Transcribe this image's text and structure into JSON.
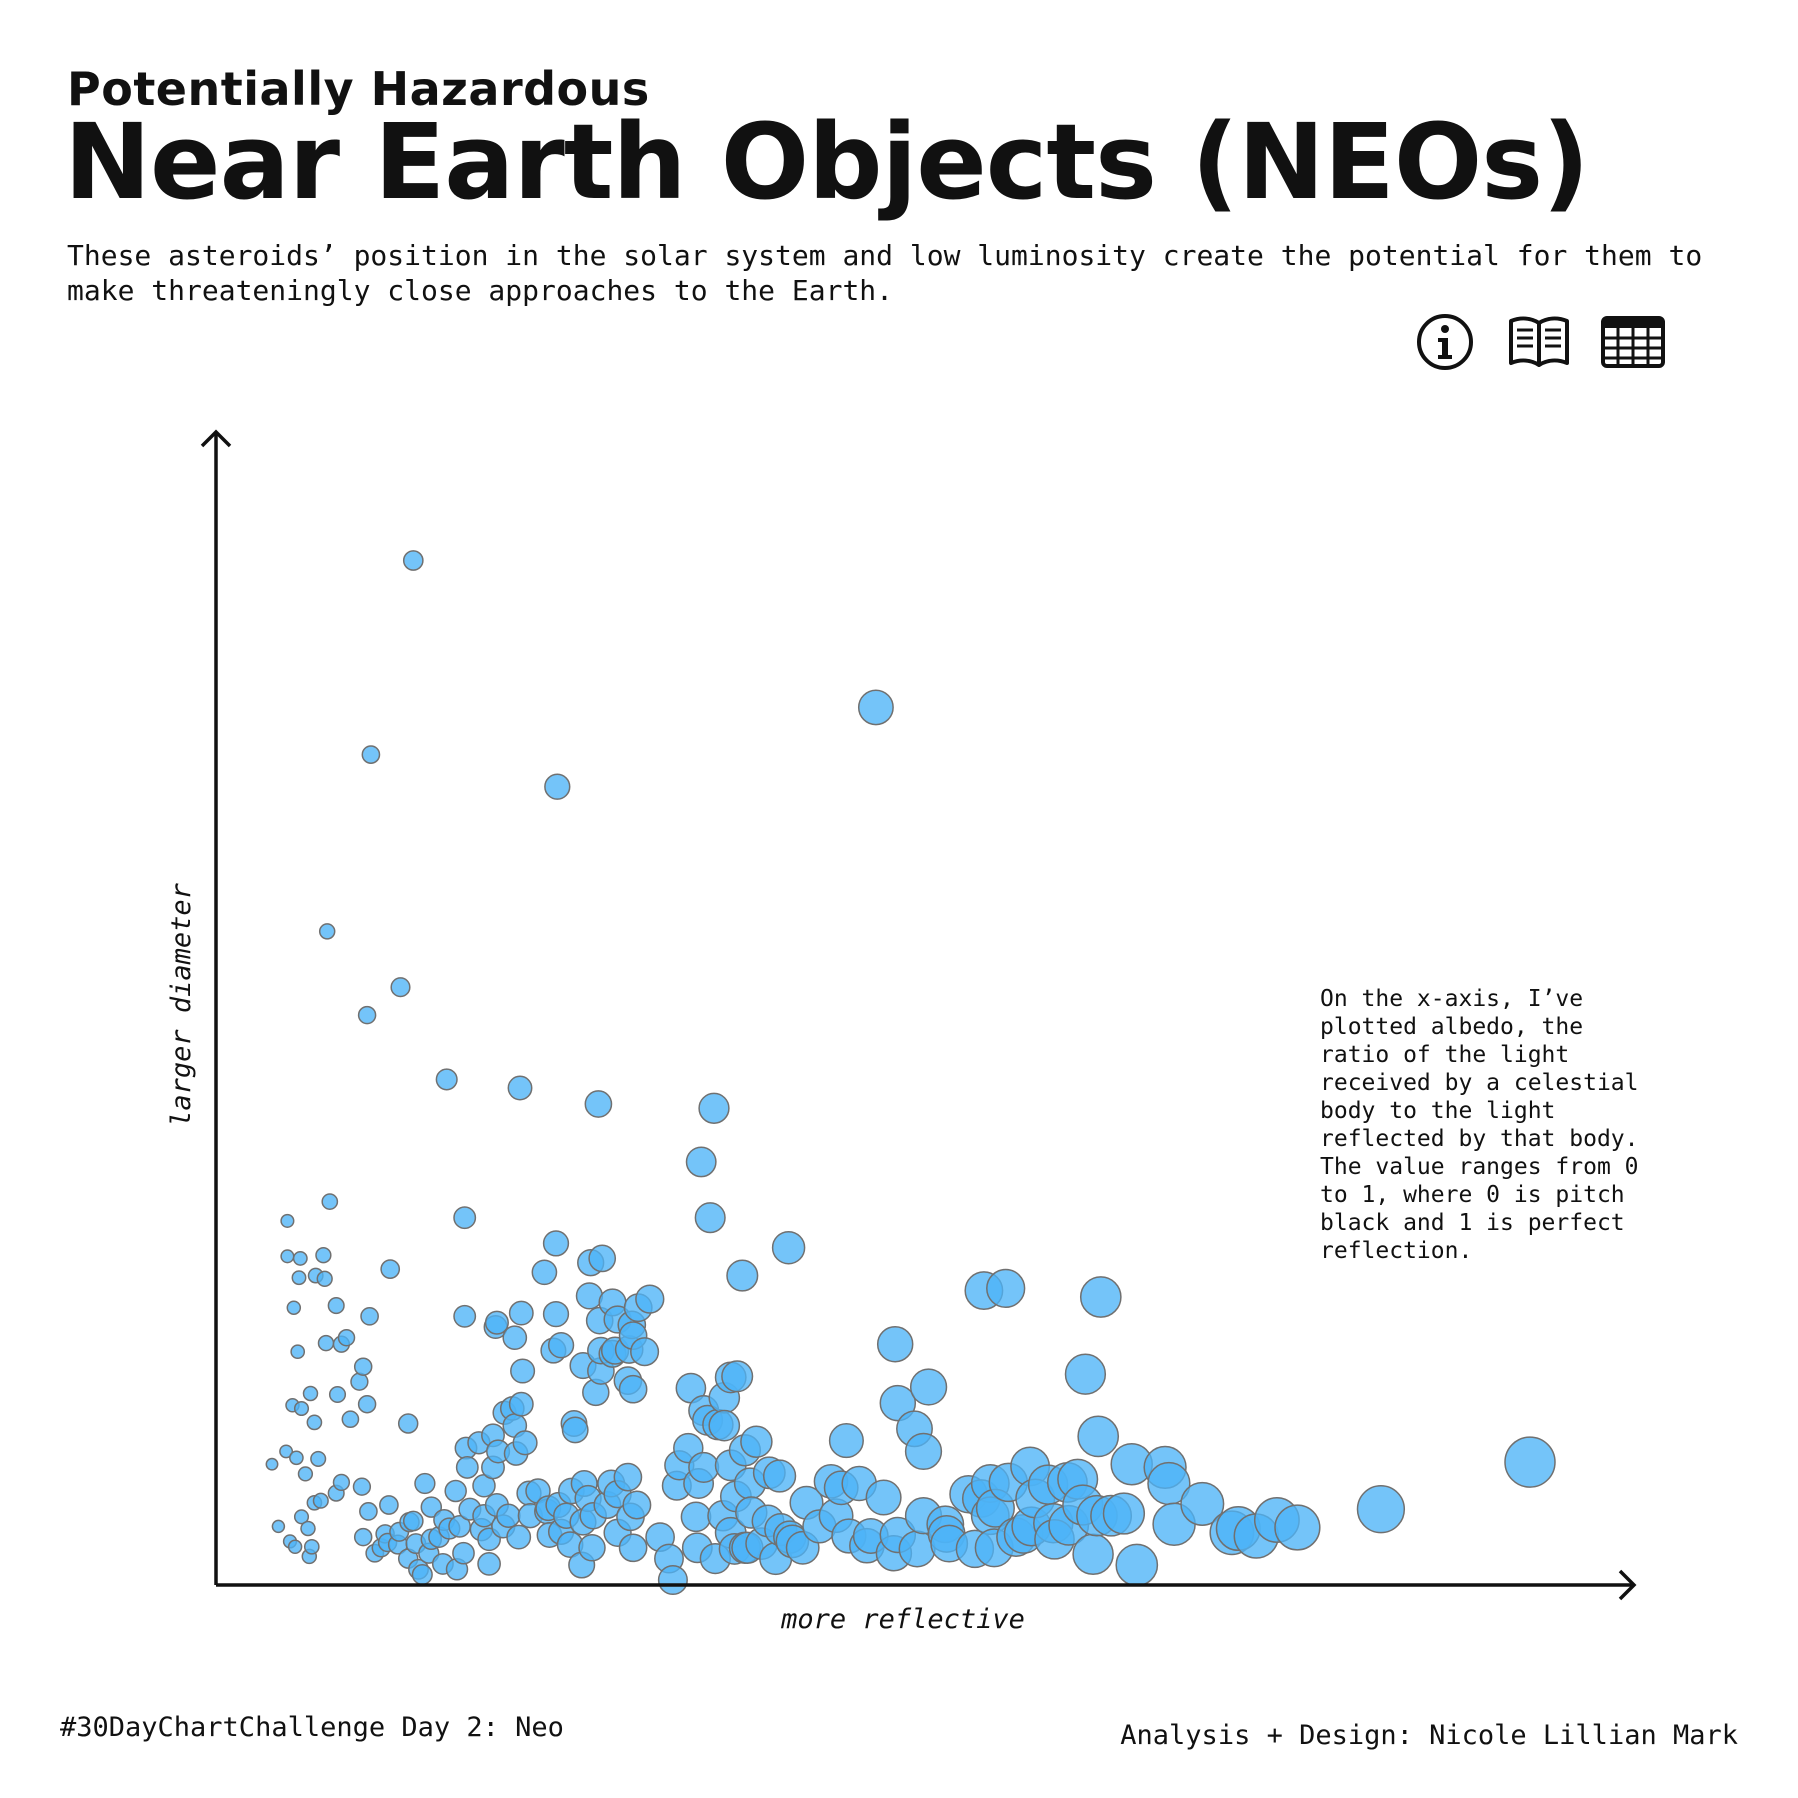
{
  "header": {
    "kicker": "Potentially Hazardous",
    "title": "Near Earth Objects (NEOs)",
    "subtitle": "These asteroids’ position in the solar system and low luminosity create the potential for them to make threateningly close approaches to the Earth."
  },
  "toolbar": {
    "icons": [
      "info-icon",
      "book-icon",
      "table-icon"
    ]
  },
  "annotation": "On the x-axis, I’ve plotted albedo, the ratio of the light received by a celestial body to the light reflected by that body. The value ranges from 0 to 1, where 0 is pitch black and 1 is perfect reflection.",
  "footer": {
    "left": "#30DayChartChallenge Day 2: Neo",
    "right": "Analysis + Design: Nicole Lillian Mark"
  },
  "colors": {
    "point_fill": "#4db3f7",
    "point_stroke": "#707070",
    "ink": "#111111"
  },
  "chart_data": {
    "type": "scatter",
    "xlabel": "more reflective",
    "ylabel": "larger diameter",
    "x_variable": "albedo",
    "xlim": [
      0,
      1
    ],
    "ylim": [
      0,
      1
    ],
    "grid": false,
    "legend": "none",
    "note": "Axes carry no tick labels; values are relative positions (0–1) read from the plot. Bubble size grows with albedo.",
    "points": [
      [
        0.131,
        0.951
      ],
      [
        0.098,
        0.77
      ],
      [
        0.064,
        0.605
      ],
      [
        0.121,
        0.553
      ],
      [
        0.095,
        0.527
      ],
      [
        0.157,
        0.467
      ],
      [
        0.214,
        0.459
      ],
      [
        0.275,
        0.444
      ],
      [
        0.243,
        0.74
      ],
      [
        0.491,
        0.814
      ],
      [
        0.033,
        0.335
      ],
      [
        0.066,
        0.353
      ],
      [
        0.171,
        0.338
      ],
      [
        0.242,
        0.314
      ],
      [
        0.113,
        0.29
      ],
      [
        0.061,
        0.303
      ],
      [
        0.043,
        0.3
      ],
      [
        0.033,
        0.302
      ],
      [
        0.055,
        0.284
      ],
      [
        0.062,
        0.281
      ],
      [
        0.042,
        0.282
      ],
      [
        0.038,
        0.254
      ],
      [
        0.071,
        0.256
      ],
      [
        0.097,
        0.246
      ],
      [
        0.041,
        0.213
      ],
      [
        0.079,
        0.226
      ],
      [
        0.075,
        0.22
      ],
      [
        0.063,
        0.221
      ],
      [
        0.092,
        0.199
      ],
      [
        0.089,
        0.185
      ],
      [
        0.051,
        0.174
      ],
      [
        0.072,
        0.173
      ],
      [
        0.095,
        0.164
      ],
      [
        0.037,
        0.163
      ],
      [
        0.044,
        0.16
      ],
      [
        0.054,
        0.147
      ],
      [
        0.082,
        0.15
      ],
      [
        0.127,
        0.146
      ],
      [
        0.032,
        0.12
      ],
      [
        0.04,
        0.114
      ],
      [
        0.057,
        0.113
      ],
      [
        0.021,
        0.108
      ],
      [
        0.047,
        0.099
      ],
      [
        0.071,
        0.081
      ],
      [
        0.091,
        0.087
      ],
      [
        0.075,
        0.091
      ],
      [
        0.054,
        0.072
      ],
      [
        0.059,
        0.074
      ],
      [
        0.044,
        0.059
      ],
      [
        0.096,
        0.064
      ],
      [
        0.049,
        0.048
      ],
      [
        0.092,
        0.04
      ],
      [
        0.109,
        0.043
      ],
      [
        0.106,
        0.03
      ],
      [
        0.05,
        0.022
      ],
      [
        0.039,
        0.031
      ],
      [
        0.035,
        0.036
      ],
      [
        0.026,
        0.05
      ],
      [
        0.052,
        0.031
      ],
      [
        0.101,
        0.025
      ],
      [
        0.111,
        0.035
      ],
      [
        0.12,
        0.045
      ],
      [
        0.133,
        0.034
      ],
      [
        0.143,
        0.025
      ],
      [
        0.127,
        0.02
      ],
      [
        0.135,
        0.01
      ],
      [
        0.138,
        0.005
      ],
      [
        0.154,
        0.015
      ],
      [
        0.17,
        0.025
      ],
      [
        0.165,
        0.01
      ],
      [
        0.19,
        0.015
      ],
      [
        0.112,
        0.07
      ],
      [
        0.131,
        0.055
      ],
      [
        0.145,
        0.068
      ],
      [
        0.164,
        0.083
      ],
      [
        0.173,
        0.105
      ],
      [
        0.186,
        0.088
      ],
      [
        0.211,
        0.118
      ],
      [
        0.218,
        0.128
      ],
      [
        0.193,
        0.135
      ],
      [
        0.202,
        0.156
      ],
      [
        0.172,
        0.123
      ],
      [
        0.182,
        0.128
      ],
      [
        0.193,
        0.105
      ],
      [
        0.14,
        0.09
      ],
      [
        0.155,
        0.056
      ],
      [
        0.159,
        0.048
      ],
      [
        0.145,
        0.038
      ],
      [
        0.119,
        0.033
      ],
      [
        0.128,
        0.054
      ],
      [
        0.151,
        0.04
      ],
      [
        0.175,
        0.066
      ],
      [
        0.196,
        0.07
      ],
      [
        0.184,
        0.047
      ],
      [
        0.205,
        0.06
      ],
      [
        0.19,
        0.038
      ],
      [
        0.213,
        0.04
      ],
      [
        0.246,
        0.045
      ],
      [
        0.237,
        0.042
      ],
      [
        0.25,
        0.06
      ],
      [
        0.263,
        0.054
      ],
      [
        0.236,
        0.067
      ],
      [
        0.221,
        0.081
      ],
      [
        0.254,
        0.083
      ],
      [
        0.267,
        0.076
      ],
      [
        0.285,
        0.09
      ],
      [
        0.298,
        0.096
      ],
      [
        0.29,
        0.08
      ],
      [
        0.305,
        0.07
      ],
      [
        0.29,
        0.044
      ],
      [
        0.302,
        0.03
      ],
      [
        0.27,
        0.03
      ],
      [
        0.323,
        0.04
      ],
      [
        0.33,
        0.02
      ],
      [
        0.262,
        0.014
      ],
      [
        0.253,
        0.033
      ],
      [
        0.228,
        0.083
      ],
      [
        0.235,
        0.064
      ],
      [
        0.197,
        0.12
      ],
      [
        0.208,
        0.16
      ],
      [
        0.21,
        0.144
      ],
      [
        0.215,
        0.164
      ],
      [
        0.256,
        0.146
      ],
      [
        0.257,
        0.14
      ],
      [
        0.273,
        0.175
      ],
      [
        0.277,
        0.195
      ],
      [
        0.288,
        0.214
      ],
      [
        0.299,
        0.215
      ],
      [
        0.286,
        0.211
      ],
      [
        0.298,
        0.186
      ],
      [
        0.302,
        0.178
      ],
      [
        0.277,
        0.214
      ],
      [
        0.242,
        0.248
      ],
      [
        0.263,
        0.2
      ],
      [
        0.21,
        0.226
      ],
      [
        0.195,
        0.236
      ],
      [
        0.215,
        0.249
      ],
      [
        0.246,
        0.219
      ],
      [
        0.24,
        0.214
      ],
      [
        0.216,
        0.195
      ],
      [
        0.196,
        0.24
      ],
      [
        0.171,
        0.246
      ],
      [
        0.276,
        0.242
      ],
      [
        0.286,
        0.259
      ],
      [
        0.315,
        0.262
      ],
      [
        0.301,
        0.238
      ],
      [
        0.311,
        0.213
      ],
      [
        0.29,
        0.243
      ],
      [
        0.268,
        0.265
      ],
      [
        0.233,
        0.287
      ],
      [
        0.269,
        0.296
      ],
      [
        0.278,
        0.3
      ],
      [
        0.306,
        0.254
      ],
      [
        0.302,
        0.228
      ],
      [
        0.357,
        0.158
      ],
      [
        0.347,
        0.179
      ],
      [
        0.373,
        0.17
      ],
      [
        0.383,
        0.19
      ],
      [
        0.36,
        0.149
      ],
      [
        0.368,
        0.145
      ],
      [
        0.378,
        0.107
      ],
      [
        0.373,
        0.144
      ],
      [
        0.353,
        0.09
      ],
      [
        0.389,
        0.121
      ],
      [
        0.398,
        0.129
      ],
      [
        0.378,
        0.189
      ],
      [
        0.345,
        0.123
      ],
      [
        0.338,
        0.107
      ],
      [
        0.336,
        0.088
      ],
      [
        0.351,
        0.059
      ],
      [
        0.378,
        0.044
      ],
      [
        0.382,
        0.078
      ],
      [
        0.394,
        0.063
      ],
      [
        0.407,
        0.055
      ],
      [
        0.417,
        0.047
      ],
      [
        0.424,
        0.04
      ],
      [
        0.437,
        0.072
      ],
      [
        0.408,
        0.1
      ],
      [
        0.416,
        0.097
      ],
      [
        0.426,
        0.036
      ],
      [
        0.402,
        0.034
      ],
      [
        0.381,
        0.029
      ],
      [
        0.456,
        0.092
      ],
      [
        0.464,
        0.086
      ],
      [
        0.47,
        0.041
      ],
      [
        0.484,
        0.032
      ],
      [
        0.487,
        0.041
      ],
      [
        0.505,
        0.025
      ],
      [
        0.508,
        0.042
      ],
      [
        0.523,
        0.029
      ],
      [
        0.546,
        0.043
      ],
      [
        0.573,
        0.076
      ],
      [
        0.584,
        0.067
      ],
      [
        0.58,
        0.09
      ],
      [
        0.594,
        0.091
      ],
      [
        0.615,
        0.076
      ],
      [
        0.625,
        0.089
      ],
      [
        0.64,
        0.091
      ],
      [
        0.629,
        0.053
      ],
      [
        0.648,
        0.094
      ],
      [
        0.664,
        0.134
      ],
      [
        0.654,
        0.192
      ],
      [
        0.666,
        0.264
      ],
      [
        0.674,
        0.06
      ],
      [
        0.684,
        0.062
      ],
      [
        0.694,
        0.014
      ],
      [
        0.723,
        0.052
      ],
      [
        0.745,
        0.071
      ],
      [
        0.768,
        0.044
      ],
      [
        0.773,
        0.048
      ],
      [
        0.787,
        0.041
      ],
      [
        0.803,
        0.056
      ],
      [
        0.819,
        0.049
      ],
      [
        0.884,
        0.066
      ],
      [
        1.0,
        0.11
      ],
      [
        0.468,
        0.13
      ],
      [
        0.532,
        0.18
      ],
      [
        0.563,
        0.08
      ],
      [
        0.508,
        0.165
      ],
      [
        0.423,
        0.31
      ],
      [
        0.365,
        0.44
      ],
      [
        0.355,
        0.39
      ],
      [
        0.362,
        0.338
      ],
      [
        0.387,
        0.284
      ],
      [
        0.575,
        0.27
      ],
      [
        0.592,
        0.272
      ],
      [
        0.506,
        0.22
      ],
      [
        0.521,
        0.141
      ],
      [
        0.528,
        0.12
      ],
      [
        0.716,
        0.105
      ],
      [
        0.719,
        0.09
      ],
      [
        0.69,
        0.108
      ],
      [
        0.652,
        0.07
      ],
      [
        0.663,
        0.06
      ],
      [
        0.641,
        0.051
      ],
      [
        0.612,
        0.05
      ],
      [
        0.66,
        0.024
      ],
      [
        0.548,
        0.034
      ],
      [
        0.568,
        0.029
      ],
      [
        0.606,
        0.043
      ],
      [
        0.63,
        0.038
      ],
      [
        0.545,
        0.052
      ],
      [
        0.528,
        0.06
      ],
      [
        0.497,
        0.077
      ],
      [
        0.478,
        0.09
      ],
      [
        0.611,
        0.106
      ],
      [
        0.58,
        0.06
      ],
      [
        0.6,
        0.04
      ],
      [
        0.583,
        0.03
      ],
      [
        0.46,
        0.06
      ],
      [
        0.447,
        0.05
      ],
      [
        0.434,
        0.03
      ],
      [
        0.413,
        0.02
      ],
      [
        0.391,
        0.03
      ],
      [
        0.372,
        0.06
      ],
      [
        0.366,
        0.02
      ],
      [
        0.352,
        0.03
      ],
      [
        0.357,
        0.105
      ],
      [
        0.393,
        0.09
      ],
      [
        0.389,
        0.03
      ],
      [
        0.333,
        0.0
      ],
      [
        0.3,
        0.059
      ],
      [
        0.282,
        0.07
      ],
      [
        0.271,
        0.06
      ],
      [
        0.264,
        0.09
      ],
      [
        0.244,
        0.07
      ],
      [
        0.222,
        0.06
      ],
      [
        0.201,
        0.05
      ],
      [
        0.186,
        0.06
      ],
      [
        0.167,
        0.05
      ]
    ]
  }
}
